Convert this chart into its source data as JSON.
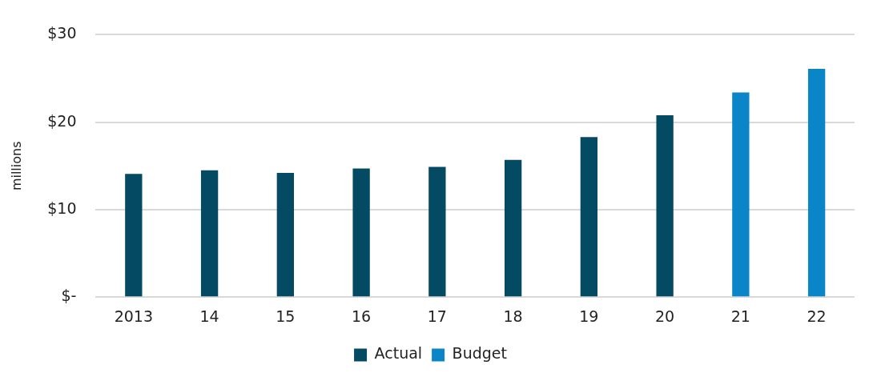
{
  "chart_data": {
    "type": "bar",
    "ylabel": "millions",
    "categories": [
      "2013",
      "14",
      "15",
      "16",
      "17",
      "18",
      "19",
      "20",
      "21",
      "22"
    ],
    "series": [
      {
        "name": "Actual",
        "color": "#044a63",
        "values": [
          14.1,
          14.5,
          14.2,
          14.7,
          14.9,
          15.7,
          18.3,
          20.8,
          null,
          null
        ]
      },
      {
        "name": "Budget",
        "color": "#0a85c8",
        "values": [
          null,
          null,
          null,
          null,
          null,
          null,
          null,
          null,
          23.4,
          26.1
        ]
      }
    ],
    "ylim": [
      0,
      30
    ],
    "yticks": [
      {
        "value": 0,
        "label": "$-"
      },
      {
        "value": 10,
        "label": "$10"
      },
      {
        "value": 20,
        "label": "$20"
      },
      {
        "value": 30,
        "label": "$30"
      }
    ],
    "grid": "y",
    "legend": "bottom"
  }
}
